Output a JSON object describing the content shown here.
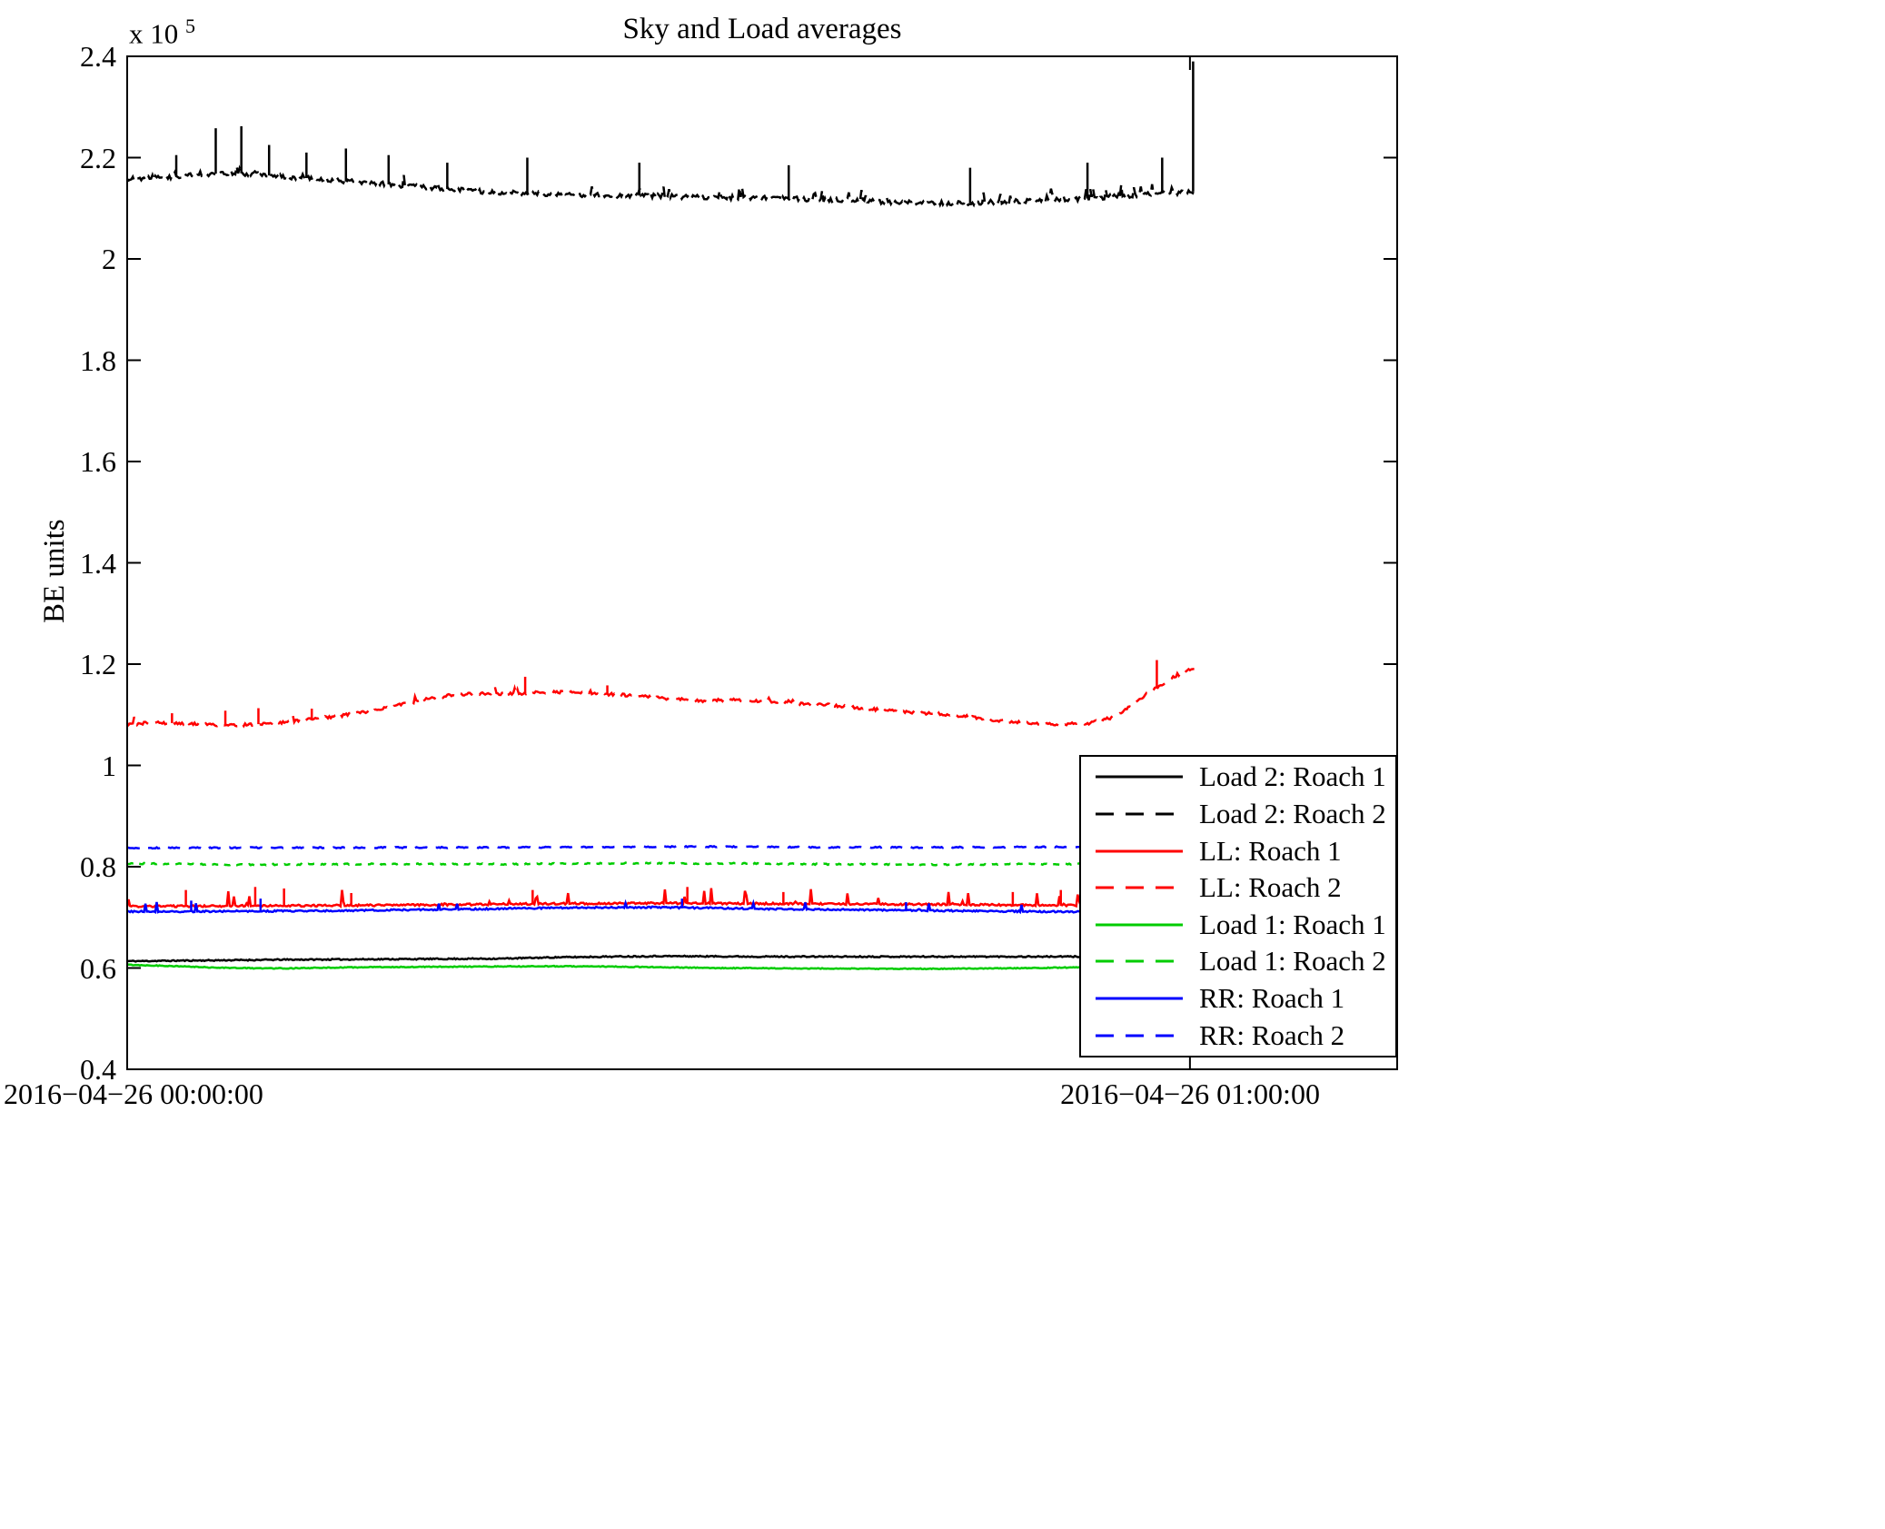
{
  "chart_data": {
    "type": "line",
    "title": "Sky and Load averages",
    "ylabel": "BE units",
    "y_multiplier": {
      "base": "x 10",
      "exp": "5"
    },
    "ylim": [
      0.4,
      2.4
    ],
    "yticks": [
      "0.4",
      "0.6",
      "0.8",
      "1",
      "1.2",
      "1.4",
      "1.6",
      "1.8",
      "2",
      "2.2",
      "2.4"
    ],
    "xtick_labels": [
      "2016−04−26 00:00:00",
      "2016−04−26 01:00:00"
    ],
    "xlim_hours": [
      0,
      1.195
    ],
    "xticks_hours": [
      0,
      1
    ],
    "data_span_hours": 1.004,
    "grid": false,
    "legend_position": "bottom-right",
    "axis_color": "#000000",
    "series": [
      {
        "name": "Load 2: Roach 1",
        "color": "#000000",
        "dash": false,
        "seed": 11,
        "noise": 0.0012,
        "spike_prob": 0,
        "spike_max": 0,
        "spikes": [],
        "points": [
          [
            0,
            0.6135
          ],
          [
            0.05,
            0.6145
          ],
          [
            0.1,
            0.6155
          ],
          [
            0.15,
            0.6165
          ],
          [
            0.2,
            0.617
          ],
          [
            0.25,
            0.6175
          ],
          [
            0.3,
            0.618
          ],
          [
            0.35,
            0.6185
          ],
          [
            0.4,
            0.621
          ],
          [
            0.45,
            0.6225
          ],
          [
            0.5,
            0.6235
          ],
          [
            0.55,
            0.623
          ],
          [
            0.6,
            0.6225
          ],
          [
            0.7,
            0.6225
          ],
          [
            0.8,
            0.6225
          ],
          [
            0.9,
            0.6225
          ],
          [
            1,
            0.6225
          ]
        ]
      },
      {
        "name": "Load 2: Roach 2",
        "color": "#000000",
        "dash": true,
        "dash_pattern": "12 6",
        "seed": 22,
        "noise": 0.0045,
        "spike_prob": 0.05,
        "spike_max": 0.02,
        "spikes": [
          [
            0.046,
            2.205
          ],
          [
            0.083,
            2.258
          ],
          [
            0.107,
            2.262
          ],
          [
            0.133,
            2.225
          ],
          [
            0.168,
            2.21
          ],
          [
            0.205,
            2.218
          ],
          [
            0.245,
            2.205
          ],
          [
            0.3,
            2.19
          ],
          [
            0.375,
            2.2
          ],
          [
            0.48,
            2.19
          ],
          [
            0.62,
            2.185
          ],
          [
            0.79,
            2.18
          ],
          [
            0.9,
            2.19
          ],
          [
            0.97,
            2.2
          ],
          [
            0.999,
            2.39
          ]
        ],
        "points": [
          [
            0,
            2.157
          ],
          [
            0.02,
            2.16
          ],
          [
            0.05,
            2.163
          ],
          [
            0.08,
            2.168
          ],
          [
            0.1,
            2.17
          ],
          [
            0.12,
            2.167
          ],
          [
            0.15,
            2.162
          ],
          [
            0.18,
            2.158
          ],
          [
            0.21,
            2.152
          ],
          [
            0.24,
            2.148
          ],
          [
            0.27,
            2.143
          ],
          [
            0.3,
            2.138
          ],
          [
            0.33,
            2.133
          ],
          [
            0.36,
            2.13
          ],
          [
            0.4,
            2.128
          ],
          [
            0.44,
            2.126
          ],
          [
            0.48,
            2.125
          ],
          [
            0.52,
            2.123
          ],
          [
            0.56,
            2.121
          ],
          [
            0.6,
            2.12
          ],
          [
            0.64,
            2.118
          ],
          [
            0.68,
            2.116
          ],
          [
            0.72,
            2.112
          ],
          [
            0.76,
            2.11
          ],
          [
            0.8,
            2.111
          ],
          [
            0.84,
            2.114
          ],
          [
            0.88,
            2.117
          ],
          [
            0.92,
            2.122
          ],
          [
            0.96,
            2.128
          ],
          [
            1,
            2.133
          ]
        ]
      },
      {
        "name": "LL: Roach 1",
        "color": "#FF0000",
        "dash": false,
        "seed": 33,
        "noise": 0.0018,
        "spike_prob": 0.045,
        "spike_max": 0.03,
        "spikes": [
          [
            0.055,
            0.754
          ],
          [
            0.12,
            0.76
          ],
          [
            0.147,
            0.757
          ],
          [
            0.21,
            0.748
          ],
          [
            0.38,
            0.754
          ],
          [
            0.525,
            0.76
          ],
          [
            0.615,
            0.75
          ],
          [
            0.83,
            0.75
          ],
          [
            0.875,
            0.754
          ],
          [
            0.95,
            0.75
          ]
        ],
        "points": [
          [
            0,
            0.7215
          ],
          [
            0.1,
            0.7225
          ],
          [
            0.2,
            0.7235
          ],
          [
            0.3,
            0.725
          ],
          [
            0.4,
            0.727
          ],
          [
            0.45,
            0.7275
          ],
          [
            0.5,
            0.728
          ],
          [
            0.55,
            0.7275
          ],
          [
            0.6,
            0.727
          ],
          [
            0.7,
            0.726
          ],
          [
            0.8,
            0.725
          ],
          [
            0.9,
            0.7235
          ],
          [
            1,
            0.7235
          ]
        ]
      },
      {
        "name": "LL: Roach 2",
        "color": "#FF0000",
        "dash": true,
        "dash_pattern": "16 9",
        "seed": 44,
        "noise": 0.0028,
        "spike_prob": 0.02,
        "spike_max": 0.015,
        "spikes": [
          [
            0.042,
            1.103
          ],
          [
            0.092,
            1.108
          ],
          [
            0.123,
            1.113
          ],
          [
            0.173,
            1.112
          ],
          [
            0.373,
            1.175
          ],
          [
            0.45,
            1.158
          ],
          [
            0.965,
            1.208
          ]
        ],
        "points": [
          [
            0,
            1.082
          ],
          [
            0.03,
            1.084
          ],
          [
            0.06,
            1.083
          ],
          [
            0.09,
            1.079
          ],
          [
            0.12,
            1.081
          ],
          [
            0.15,
            1.086
          ],
          [
            0.18,
            1.093
          ],
          [
            0.21,
            1.101
          ],
          [
            0.24,
            1.112
          ],
          [
            0.27,
            1.126
          ],
          [
            0.3,
            1.138
          ],
          [
            0.33,
            1.142
          ],
          [
            0.36,
            1.141
          ],
          [
            0.39,
            1.145
          ],
          [
            0.42,
            1.144
          ],
          [
            0.45,
            1.141
          ],
          [
            0.48,
            1.137
          ],
          [
            0.51,
            1.131
          ],
          [
            0.54,
            1.128
          ],
          [
            0.57,
            1.129
          ],
          [
            0.6,
            1.126
          ],
          [
            0.63,
            1.122
          ],
          [
            0.66,
            1.119
          ],
          [
            0.69,
            1.113
          ],
          [
            0.72,
            1.107
          ],
          [
            0.75,
            1.103
          ],
          [
            0.78,
            1.098
          ],
          [
            0.81,
            1.09
          ],
          [
            0.84,
            1.084
          ],
          [
            0.87,
            1.081
          ],
          [
            0.9,
            1.083
          ],
          [
            0.92,
            1.092
          ],
          [
            0.94,
            1.115
          ],
          [
            0.96,
            1.148
          ],
          [
            0.98,
            1.173
          ],
          [
            1,
            1.193
          ]
        ]
      },
      {
        "name": "Load 1: Roach 1",
        "color": "#00CC00",
        "dash": false,
        "seed": 55,
        "noise": 0.0008,
        "spike_prob": 0,
        "spike_max": 0,
        "spikes": [],
        "points": [
          [
            0,
            0.6065
          ],
          [
            0.04,
            0.604
          ],
          [
            0.08,
            0.601
          ],
          [
            0.12,
            0.5995
          ],
          [
            0.16,
            0.5995
          ],
          [
            0.2,
            0.601
          ],
          [
            0.25,
            0.602
          ],
          [
            0.3,
            0.6025
          ],
          [
            0.35,
            0.603
          ],
          [
            0.4,
            0.6035
          ],
          [
            0.45,
            0.603
          ],
          [
            0.5,
            0.6015
          ],
          [
            0.55,
            0.6
          ],
          [
            0.6,
            0.5995
          ],
          [
            0.65,
            0.599
          ],
          [
            0.7,
            0.5985
          ],
          [
            0.75,
            0.5985
          ],
          [
            0.8,
            0.599
          ],
          [
            0.85,
            0.6
          ],
          [
            0.9,
            0.6015
          ],
          [
            0.95,
            0.603
          ],
          [
            1,
            0.6045
          ]
        ]
      },
      {
        "name": "Load 1: Roach 2",
        "color": "#00CC00",
        "dash": true,
        "dash_pattern": "7 7",
        "seed": 66,
        "noise": 0.0012,
        "spike_prob": 0,
        "spike_max": 0,
        "spikes": [],
        "points": [
          [
            0,
            0.8065
          ],
          [
            0.05,
            0.8055
          ],
          [
            0.1,
            0.804
          ],
          [
            0.15,
            0.8045
          ],
          [
            0.2,
            0.805
          ],
          [
            0.25,
            0.8055
          ],
          [
            0.3,
            0.8055
          ],
          [
            0.35,
            0.805
          ],
          [
            0.4,
            0.806
          ],
          [
            0.45,
            0.8065
          ],
          [
            0.5,
            0.807
          ],
          [
            0.55,
            0.8065
          ],
          [
            0.6,
            0.806
          ],
          [
            0.65,
            0.805
          ],
          [
            0.7,
            0.8045
          ],
          [
            0.75,
            0.804
          ],
          [
            0.8,
            0.8045
          ],
          [
            0.85,
            0.805
          ],
          [
            0.9,
            0.8055
          ],
          [
            1,
            0.8055
          ]
        ]
      },
      {
        "name": "RR: Roach 1",
        "color": "#0000FF",
        "dash": false,
        "seed": 77,
        "noise": 0.0015,
        "spike_prob": 0.015,
        "spike_max": 0.02,
        "spikes": [
          [
            0.06,
            0.733
          ],
          [
            0.125,
            0.737
          ],
          [
            0.52,
            0.737
          ],
          [
            0.73,
            0.73
          ]
        ],
        "points": [
          [
            0,
            0.7115
          ],
          [
            0.05,
            0.7115
          ],
          [
            0.1,
            0.712
          ],
          [
            0.15,
            0.7125
          ],
          [
            0.2,
            0.713
          ],
          [
            0.25,
            0.7145
          ],
          [
            0.3,
            0.7155
          ],
          [
            0.35,
            0.717
          ],
          [
            0.4,
            0.7185
          ],
          [
            0.45,
            0.7195
          ],
          [
            0.5,
            0.7195
          ],
          [
            0.55,
            0.7185
          ],
          [
            0.6,
            0.7165
          ],
          [
            0.65,
            0.7155
          ],
          [
            0.7,
            0.7145
          ],
          [
            0.75,
            0.7135
          ],
          [
            0.8,
            0.7125
          ],
          [
            0.85,
            0.7115
          ],
          [
            0.9,
            0.711
          ],
          [
            0.95,
            0.7115
          ],
          [
            1,
            0.7125
          ]
        ]
      },
      {
        "name": "RR: Roach 2",
        "color": "#0000FF",
        "dash": true,
        "dash_pattern": "14 10",
        "seed": 88,
        "noise": 0.0012,
        "spike_prob": 0,
        "spike_max": 0,
        "spikes": [],
        "points": [
          [
            0,
            0.837
          ],
          [
            0.1,
            0.8375
          ],
          [
            0.2,
            0.8375
          ],
          [
            0.3,
            0.838
          ],
          [
            0.4,
            0.8385
          ],
          [
            0.5,
            0.8395
          ],
          [
            0.55,
            0.8395
          ],
          [
            0.6,
            0.839
          ],
          [
            0.65,
            0.8385
          ],
          [
            0.7,
            0.8385
          ],
          [
            0.75,
            0.838
          ],
          [
            0.8,
            0.8385
          ],
          [
            0.85,
            0.839
          ],
          [
            0.9,
            0.8385
          ],
          [
            1,
            0.8395
          ]
        ]
      }
    ]
  }
}
